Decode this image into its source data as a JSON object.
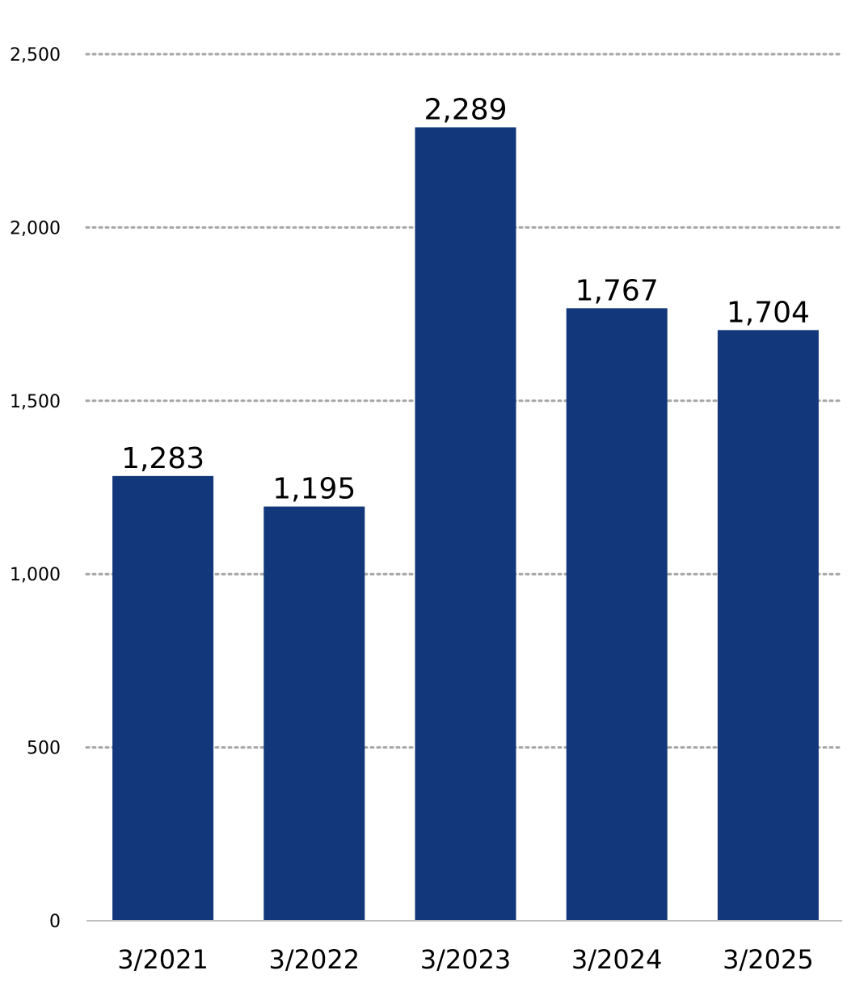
{
  "chart_data": {
    "type": "bar",
    "categories": [
      "3/2021",
      "3/2022",
      "3/2023",
      "3/2024",
      "3/2025"
    ],
    "values": [
      1283,
      1195,
      2289,
      1767,
      1704
    ],
    "data_labels": [
      "1,283",
      "1,195",
      "2,289",
      "1,767",
      "1,704"
    ],
    "ylim": [
      0,
      2500
    ],
    "yticks": [
      0,
      500,
      1000,
      1500,
      2000,
      2500
    ],
    "ytick_labels": [
      "0",
      "500",
      "1,000",
      "1,500",
      "2,000",
      "2,500"
    ],
    "grid": true,
    "title": "",
    "xlabel": "",
    "ylabel": "",
    "bar_color": "#12377A",
    "grid_color": "#A6A6A6"
  }
}
